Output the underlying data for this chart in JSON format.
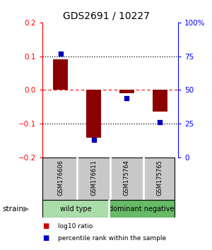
{
  "title": "GDS2691 / 10227",
  "samples": [
    "GSM176606",
    "GSM176611",
    "GSM175764",
    "GSM175765"
  ],
  "log10_ratio": [
    0.09,
    -0.142,
    -0.01,
    -0.063
  ],
  "percentile_rank": [
    77,
    13,
    44,
    26
  ],
  "ylim_left": [
    -0.2,
    0.2
  ],
  "ylim_right": [
    0,
    100
  ],
  "yticks_left": [
    -0.2,
    -0.1,
    0,
    0.1,
    0.2
  ],
  "yticks_right": [
    0,
    25,
    50,
    75,
    100
  ],
  "ytick_labels_right": [
    "0",
    "25",
    "50",
    "75",
    "100%"
  ],
  "hlines_black": [
    0.1,
    -0.1
  ],
  "hline_red": 0,
  "bar_color": "#8b0000",
  "square_color": "#0000bb",
  "groups": [
    {
      "label": "wild type",
      "indices": [
        0,
        1
      ],
      "color": "#aaddaa"
    },
    {
      "label": "dominant negative",
      "indices": [
        2,
        3
      ],
      "color": "#66bb66"
    }
  ],
  "strain_label": "strain",
  "legend_items": [
    {
      "color": "#cc0000",
      "label": "log10 ratio"
    },
    {
      "color": "#0000cc",
      "label": "percentile rank within the sample"
    }
  ],
  "background_color": "#ffffff",
  "plot_bg_color": "#ffffff",
  "bar_width": 0.45,
  "sample_box_color": "#c8c8c8",
  "title_fontsize": 10,
  "tick_fontsize": 7.5
}
